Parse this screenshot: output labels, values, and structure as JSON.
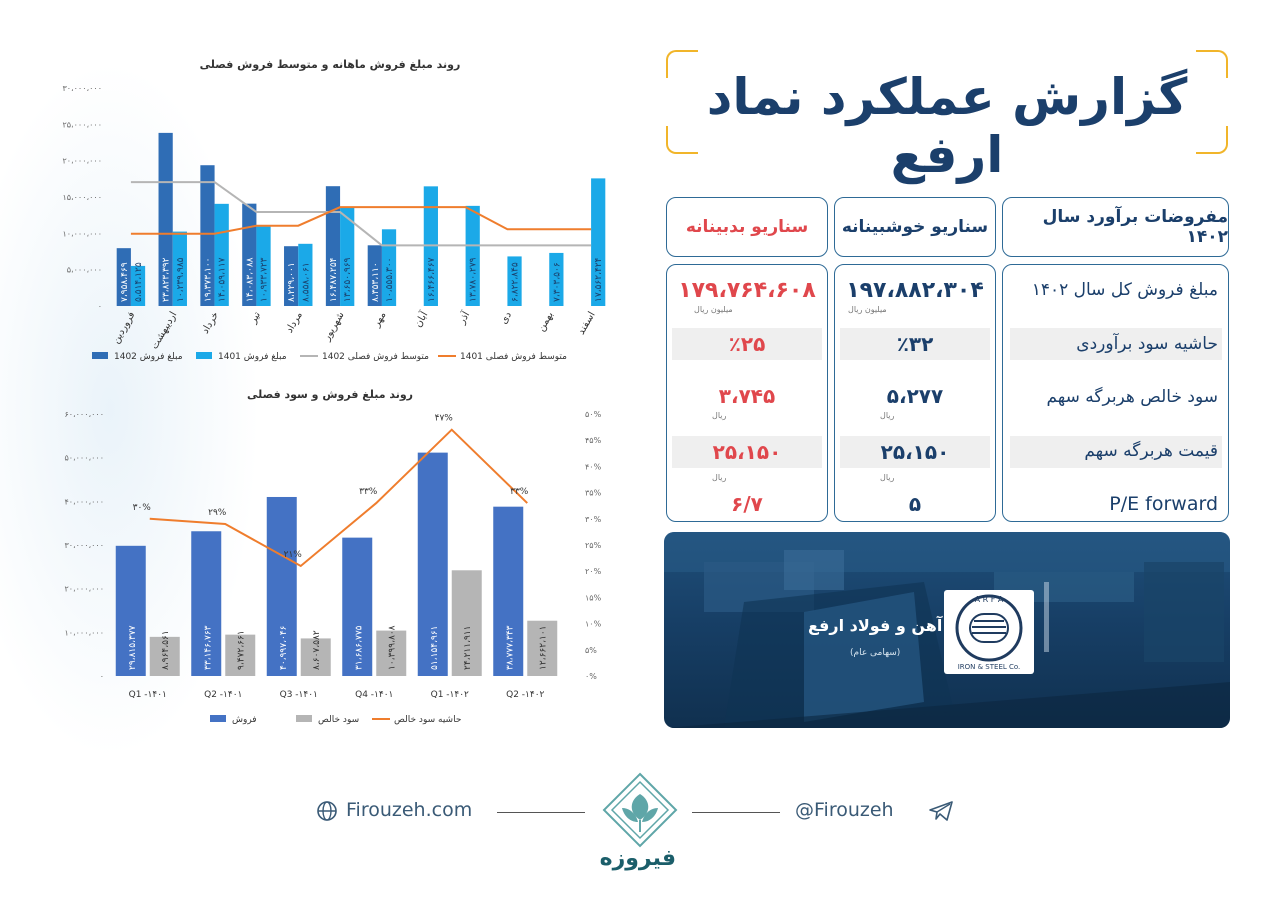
{
  "header": {
    "title": "گزارش عملکرد نماد ارفع"
  },
  "table": {
    "headers": [
      "مفروضات برآورد سال ۱۴۰۲",
      "سناریو خوشبینانه",
      "سناریو بدبینانه"
    ],
    "rows": [
      {
        "label": "مبلغ فروش کل سال ۱۴۰۲",
        "optimistic": "۱۹۷،۸۸۲،۳۰۴",
        "pessimistic": "۱۷۹،۷۶۴،۶۰۸",
        "unit": "میلیون ریال"
      },
      {
        "label": "حاشیه سود برآوردی",
        "optimistic": "٪۳۲",
        "pessimistic": "٪۲۵",
        "unit": ""
      },
      {
        "label": "سود خالص هربرگه سهم",
        "optimistic": "۵،۲۷۷",
        "pessimistic": "۳،۷۴۵",
        "unit": "ریال"
      },
      {
        "label": "قیمت هربرگه سهم",
        "optimistic": "۲۵،۱۵۰",
        "pessimistic": "۲۵،۱۵۰",
        "unit": "ریال"
      },
      {
        "label": "P/E forward",
        "optimistic": "۵",
        "pessimistic": "۶/۷",
        "unit": ""
      }
    ]
  },
  "company": {
    "name": "شرکت آهن و فولاد ارفع",
    "sub": "(سهامی عام)",
    "logo_top": "A R F A",
    "logo_bottom": "IRON & STEEL Co."
  },
  "footer": {
    "website": "Firouzeh.com",
    "handle": "@Firouzeh",
    "brand": "فیروزه"
  },
  "icons": [
    "globe-icon",
    "telegram-icon",
    "firouzeh-logo-icon"
  ],
  "colors": {
    "navy": "#1b3f6b",
    "red": "#e0474c",
    "gold": "#f1b52a",
    "bar1402": "#2f6db5",
    "bar1401": "#1ba9e8",
    "gray": "#b5b5b5",
    "orange": "#ef7d2d"
  },
  "chart_data": [
    {
      "type": "bar",
      "title": "روند مبلغ فروش ماهانه و متوسط فروش فصلی",
      "categories": [
        "فروردین",
        "اردیبهشت",
        "خرداد",
        "تیر",
        "مرداد",
        "شهریور",
        "مهر",
        "آبان",
        "آذر",
        "دی",
        "بهمن",
        "اسفند"
      ],
      "y_ticks": [
        "۰",
        "۵،۰۰۰،۰۰۰",
        "۱۰،۰۰۰،۰۰۰",
        "۱۵،۰۰۰،۰۰۰",
        "۲۰،۰۰۰،۰۰۰",
        "۲۵،۰۰۰،۰۰۰",
        "۳۰،۰۰۰،۰۰۰"
      ],
      "ylim": [
        0,
        30000000
      ],
      "series": [
        {
          "name": "مبلغ فروش 1402",
          "kind": "bar",
          "color": "#2f6db5",
          "values": [
            7958469,
            23823392,
            19373100,
            14083088,
            8229001,
            16487254,
            8353110,
            null,
            null,
            null,
            null,
            null
          ],
          "labels": [
            "۷،۹۵۸،۴۶۹",
            "۲۳،۸۲۳،۳۹۲",
            "۱۹،۳۷۳،۱۰۰",
            "۱۴،۰۸۳،۰۸۸",
            "۸،۲۲۹،۰۰۱",
            "۱۶،۴۸۷،۲۵۴",
            "۸،۳۵۳،۱۱۰",
            "",
            "",
            "",
            "",
            ""
          ]
        },
        {
          "name": "مبلغ فروش 1401",
          "kind": "bar",
          "color": "#1ba9e8",
          "values": [
            5514125,
            10239985,
            14059117,
            10933723,
            8558061,
            13650969,
            10555300,
            16466467,
            13780279,
            6822845,
            7303506,
            17562424
          ],
          "labels": [
            "۵،۵۱۴،۱۲۵",
            "۱۰،۲۳۹،۹۸۵",
            "۱۴،۰۵۹،۱۱۷",
            "۱۰،۹۳۳،۷۲۳",
            "۸،۵۵۸،۰۶۱",
            "۱۳،۶۵۰،۹۶۹",
            "۱۰،۵۵۵،۳۰۰",
            "۱۶،۴۶۶،۴۶۷",
            "۱۳،۷۸۰،۲۷۹",
            "۶،۸۲۲،۸۴۵",
            "۷،۳۰۳،۵۰۶",
            "۱۷،۵۶۲،۴۲۴"
          ]
        },
        {
          "name": "متوسط فروش فصلی 1402",
          "kind": "line",
          "color": "#b5b5b5",
          "values": [
            17050000,
            17050000,
            17050000,
            12930000,
            12930000,
            12930000,
            8350000,
            8350000,
            8350000,
            8350000,
            8350000,
            8350000
          ]
        },
        {
          "name": "متوسط فروش فصلی 1401",
          "kind": "line",
          "color": "#ef7d2d",
          "values": [
            9940000,
            9940000,
            9940000,
            11050000,
            11050000,
            13600000,
            13600000,
            13600000,
            13600000,
            10560000,
            10560000,
            10560000
          ]
        }
      ],
      "legend": [
        "مبلغ فروش 1402",
        "مبلغ فروش 1401",
        "متوسط فروش فصلی 1402",
        "متوسط فروش فصلی 1401"
      ]
    },
    {
      "type": "bar",
      "title": "روند مبلغ فروش و سود فصلی",
      "categories": [
        "Q1 -۱۴۰۱",
        "Q2 -۱۴۰۱",
        "Q3 -۱۴۰۱",
        "Q4 -۱۴۰۱",
        "Q1 -۱۴۰۲",
        "Q2 -۱۴۰۲"
      ],
      "y_ticks": [
        "۰",
        "۱۰،۰۰۰،۰۰۰",
        "۲۰،۰۰۰،۰۰۰",
        "۳۰،۰۰۰،۰۰۰",
        "۴۰،۰۰۰،۰۰۰",
        "۵۰،۰۰۰،۰۰۰",
        "۶۰،۰۰۰،۰۰۰"
      ],
      "y2_ticks": [
        "۰%",
        "۵%",
        "۱۰%",
        "۱۵%",
        "۲۰%",
        "۲۵%",
        "۳۰%",
        "۳۵%",
        "۴۰%",
        "۴۵%",
        "۵۰%"
      ],
      "ylim": [
        0,
        60000000
      ],
      "y2lim": [
        0,
        50
      ],
      "series": [
        {
          "name": "فروش",
          "kind": "bar",
          "color": "#4472c4",
          "values": [
            29815377,
            33146763,
            40997046,
            31686775,
            51154961,
            38777343
          ],
          "labels": [
            "۲۹،۸۱۵،۳۷۷",
            "۳۳،۱۴۶،۷۶۳",
            "۴۰،۹۹۷،۰۴۶",
            "۳۱،۶۸۶،۷۷۵",
            "۵۱،۱۵۴،۹۶۱",
            "۳۸،۷۷۷،۳۴۳"
          ]
        },
        {
          "name": "سود خالص",
          "kind": "bar",
          "color": "#b5b5b5",
          "values": [
            8964561,
            9472661,
            8607582,
            10399808,
            24211911,
            12662101
          ],
          "labels": [
            "۸،۹۶۴،۵۶۱",
            "۹،۴۷۲،۶۶۱",
            "۸،۶۰۷،۵۸۲",
            "۱۰،۳۹۹،۸۰۸",
            "۲۴،۲۱۱،۹۱۱",
            "۱۲،۶۶۲،۱۰۱"
          ]
        },
        {
          "name": "حاشیه سود خالص",
          "kind": "line",
          "axis": "right",
          "color": "#ef7d2d",
          "values": [
            30,
            29,
            21,
            33,
            47,
            33
          ],
          "labels": [
            "۳۰%",
            "۲۹%",
            "۲۱%",
            "۳۳%",
            "۴۷%",
            "۳۳%"
          ]
        }
      ],
      "legend": [
        "فروش",
        "سود خالص",
        "حاشیه سود خالص"
      ]
    }
  ]
}
